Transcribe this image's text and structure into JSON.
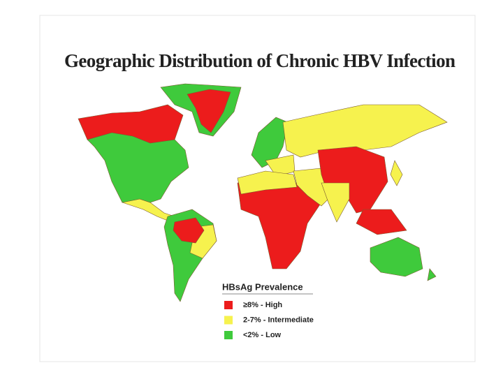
{
  "title": "Geographic Distribution of Chronic HBV Infection",
  "legend": {
    "title": "HBsAg Prevalence",
    "items": [
      {
        "label": "≥8% - High",
        "color": "#ec1c1c"
      },
      {
        "label": "2-7% - Intermediate",
        "color": "#f6f24e"
      },
      {
        "label": "<2% - Low",
        "color": "#3fca3c"
      }
    ]
  }
}
